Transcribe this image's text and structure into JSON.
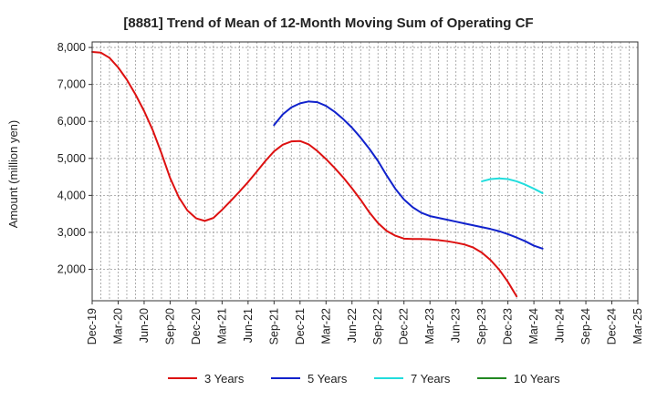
{
  "chart_data": {
    "type": "line",
    "title": "[8881]  Trend of Mean of 12-Month Moving Sum of Operating CF",
    "xlabel": "",
    "ylabel": "Amount (million yen)",
    "ylim": [
      1150,
      8150
    ],
    "yticks": [
      2000,
      3000,
      4000,
      5000,
      6000,
      7000,
      8000
    ],
    "ytick_labels": [
      "2,000",
      "3,000",
      "4,000",
      "5,000",
      "6,000",
      "7,000",
      "8,000"
    ],
    "x_start": "Dec-19",
    "x_end": "Mar-25",
    "x_tick_labels": [
      "Dec-19",
      "Mar-20",
      "Jun-20",
      "Sep-20",
      "Dec-20",
      "Mar-21",
      "Jun-21",
      "Sep-21",
      "Dec-21",
      "Mar-22",
      "Jun-22",
      "Sep-22",
      "Dec-22",
      "Mar-23",
      "Jun-23",
      "Sep-23",
      "Dec-23",
      "Mar-24",
      "Jun-24",
      "Sep-24",
      "Dec-24",
      "Mar-25"
    ],
    "grid": true,
    "legend_position": "bottom",
    "series": [
      {
        "name": "3 Years",
        "color": "#dd1111",
        "start_month_index": 0,
        "values": [
          7880,
          7860,
          7720,
          7460,
          7130,
          6730,
          6280,
          5760,
          5140,
          4470,
          3950,
          3590,
          3380,
          3310,
          3390,
          3610,
          3850,
          4100,
          4360,
          4640,
          4930,
          5190,
          5370,
          5460,
          5470,
          5380,
          5200,
          4980,
          4740,
          4480,
          4190,
          3880,
          3540,
          3250,
          3040,
          2910,
          2830,
          2820,
          2820,
          2810,
          2790,
          2760,
          2720,
          2670,
          2590,
          2450,
          2250,
          1990,
          1660,
          1270
        ]
      },
      {
        "name": "5 Years",
        "color": "#1122cc",
        "start_month_index": 21,
        "values": [
          5900,
          6190,
          6380,
          6490,
          6540,
          6520,
          6420,
          6260,
          6060,
          5830,
          5560,
          5260,
          4930,
          4540,
          4180,
          3890,
          3680,
          3530,
          3440,
          3390,
          3340,
          3290,
          3240,
          3190,
          3140,
          3090,
          3030,
          2950,
          2860,
          2760,
          2640,
          2560
        ]
      },
      {
        "name": "7 Years",
        "color": "#22dddd",
        "start_month_index": 45,
        "values": [
          4380,
          4440,
          4460,
          4440,
          4380,
          4290,
          4180,
          4060
        ]
      },
      {
        "name": "10 Years",
        "color": "#228822",
        "start_month_index": 0,
        "values": []
      }
    ]
  }
}
